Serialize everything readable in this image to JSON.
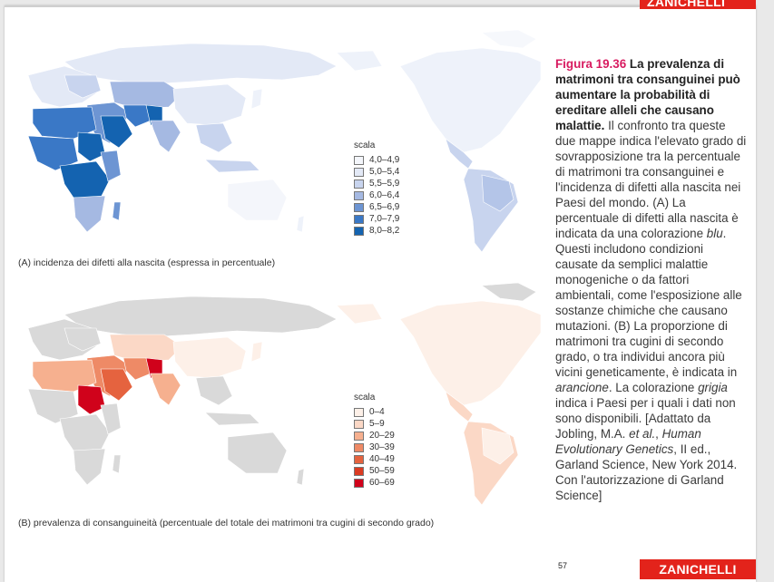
{
  "header": {
    "brand": "ZANICHELLI"
  },
  "map_a": {
    "caption": "(A) incidenza dei difetti alla nascita (espressa in percentuale)",
    "legend_title": "scala",
    "legend": [
      {
        "label": "4,0–4,9",
        "color": "#f4f6fb"
      },
      {
        "label": "5,0–5,4",
        "color": "#e3e9f6"
      },
      {
        "label": "5,5–5,9",
        "color": "#c8d4ee"
      },
      {
        "label": "6,0–6,4",
        "color": "#a5b9e2"
      },
      {
        "label": "6,5–6,9",
        "color": "#6d95d3"
      },
      {
        "label": "7,0–7,9",
        "color": "#3a78c6"
      },
      {
        "label": "8,0–8,2",
        "color": "#1463b0"
      }
    ]
  },
  "map_b": {
    "caption": "(B) prevalenza di consanguineità (percentuale del totale dei matrimoni tra cugini di secondo grado)",
    "legend_title": "scala",
    "legend": [
      {
        "label": "0–4",
        "color": "#fdf0e8"
      },
      {
        "label": "5–9",
        "color": "#fbd8c6"
      },
      {
        "label": "20–29",
        "color": "#f6b08f"
      },
      {
        "label": "30–39",
        "color": "#ee8a66"
      },
      {
        "label": "40–49",
        "color": "#e5633f"
      },
      {
        "label": "50–59",
        "color": "#db3b22"
      },
      {
        "label": "60–69",
        "color": "#d0021b"
      }
    ],
    "nodata_color": "#d9d9d9"
  },
  "figure": {
    "number": "Figura 19.36",
    "title": "La prevalenza di matrimoni tra consanguinei può aumentare la probabilità di ereditare alleli che causano malattie.",
    "body_1": "Il confronto tra queste due mappe indica l'elevato grado di sovrapposizione tra la percentuale di matrimoni tra consanguinei e l'incidenza di difetti alla nascita nei Paesi del mondo. (A) La percentuale di difetti alla nascita è indicata da una colorazione",
    "blu": "blu",
    "body_2": ". Questi includono condizioni causate da semplici malattie monogeniche o da fattori ambientali, come l'esposizione alle sostanze chimiche che causano mutazioni. (B) La proporzione di matrimoni tra cugini di secondo grado, o tra individui ancora più vicini geneticamente, è indicata in",
    "arancione": "arancione",
    "body_3": ". La colorazione",
    "grigia": "grigia",
    "body_4": "indica i Paesi per i quali i dati non sono disponibili. [Adattato da Jobling, M.A.",
    "etal": "et al.",
    "body_5": ",",
    "book": "Human Evolutionary Genetics",
    "body_6": ", II ed., Garland Science, New York 2014. Con l'autorizzazione di Garland Science]"
  },
  "footer": {
    "page_number": "57",
    "brand": "ZANICHELLI"
  }
}
